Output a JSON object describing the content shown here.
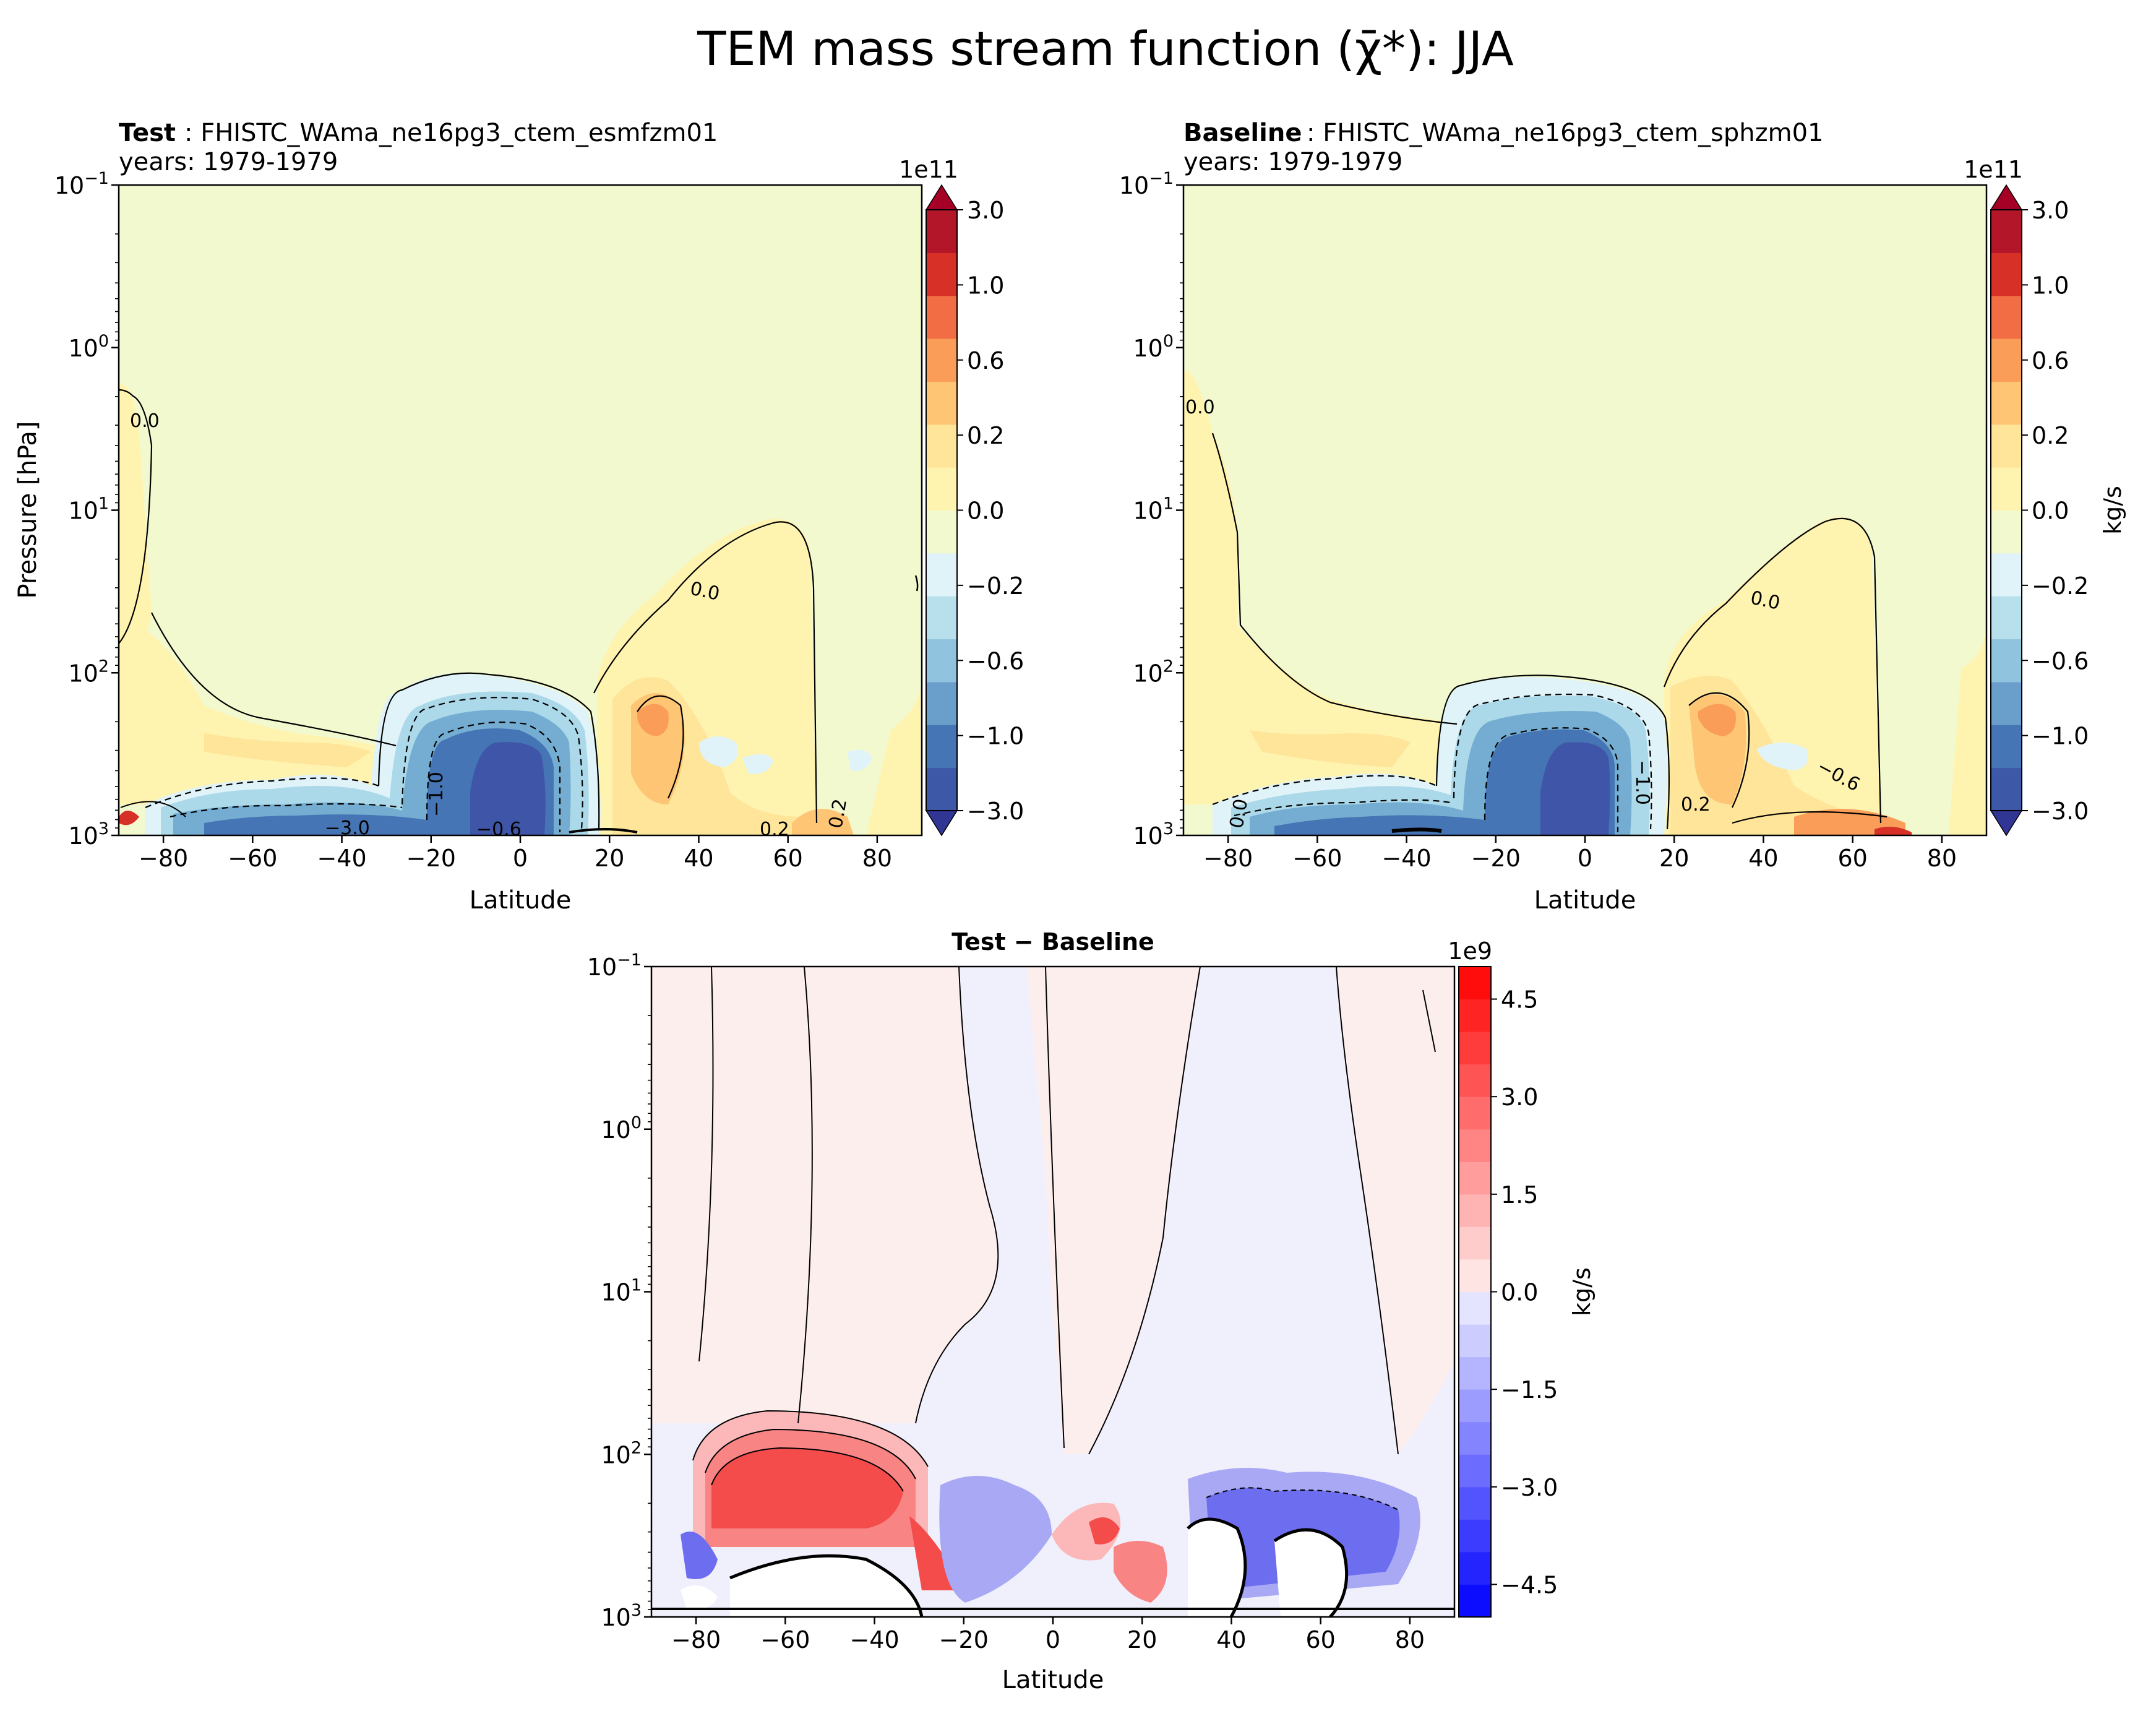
{
  "figure": {
    "suptitle": "TEM mass stream function (χ̄*): JJA"
  },
  "chart_data": [
    {
      "type": "contour",
      "panel": "Test",
      "title_bold": "Test",
      "title_rest": ": FHISTC_WAma_ne16pg3_ctem_esmfzm01",
      "subtitle": "years: 1979-1979",
      "xlabel": "Latitude",
      "ylabel": "Pressure [hPa]",
      "xlim": [
        -90,
        90
      ],
      "xticks": [
        "−80",
        "−60",
        "−40",
        "−20",
        "0",
        "20",
        "40",
        "60",
        "80"
      ],
      "ylim_hPa": [
        1000,
        0.1
      ],
      "yscale": "log",
      "yticks": [
        "10^-1",
        "10^0",
        "10^1",
        "10^2",
        "10^3"
      ],
      "colorbar": {
        "multiplier": "1e11",
        "label": "",
        "ticks": [
          "3.0",
          "1.0",
          "0.6",
          "0.2",
          "0.0",
          "−0.2",
          "−0.6",
          "−1.0",
          "−3.0"
        ],
        "colormap": "RdYlBu_r",
        "extend": "both"
      },
      "contour_labels": [
        "0.0",
        "0.0",
        "−1.0",
        "−3.0",
        "−0.6",
        "0.2",
        "0.2"
      ]
    },
    {
      "type": "contour",
      "panel": "Baseline",
      "title_bold": "Baseline",
      "title_rest": ": FHISTC_WAma_ne16pg3_ctem_sphzm01",
      "subtitle": "years: 1979-1979",
      "xlabel": "Latitude",
      "ylabel": "",
      "xlim": [
        -90,
        90
      ],
      "xticks": [
        "−80",
        "−60",
        "−40",
        "−20",
        "0",
        "20",
        "40",
        "60",
        "80"
      ],
      "ylim_hPa": [
        1000,
        0.1
      ],
      "yscale": "log",
      "yticks": [
        "10^-1",
        "10^0",
        "10^1",
        "10^2",
        "10^3"
      ],
      "colorbar": {
        "multiplier": "1e11",
        "label": "kg/s",
        "ticks": [
          "3.0",
          "1.0",
          "0.6",
          "0.2",
          "0.0",
          "−0.2",
          "−0.6",
          "−1.0",
          "−3.0"
        ],
        "colormap": "RdYlBu_r",
        "extend": "both"
      },
      "contour_labels": [
        "0.0",
        "0.0",
        "0.0",
        "−1.0",
        "0.2",
        "−0.6"
      ]
    },
    {
      "type": "contour",
      "panel": "Difference",
      "title_bold": "Test − Baseline",
      "xlabel": "Latitude",
      "xlim": [
        -90,
        90
      ],
      "xticks": [
        "−80",
        "−60",
        "−40",
        "−20",
        "0",
        "20",
        "40",
        "60",
        "80"
      ],
      "ylim_hPa": [
        1000,
        0.1
      ],
      "yscale": "log",
      "yticks": [
        "10^-1",
        "10^0",
        "10^1",
        "10^2",
        "10^3"
      ],
      "colorbar": {
        "multiplier": "1e9",
        "label": "kg/s",
        "ticks": [
          "4.5",
          "3.0",
          "1.5",
          "0.0",
          "−1.5",
          "−3.0",
          "−4.5"
        ],
        "colormap": "bwr",
        "range": [
          -5,
          5
        ]
      }
    }
  ]
}
